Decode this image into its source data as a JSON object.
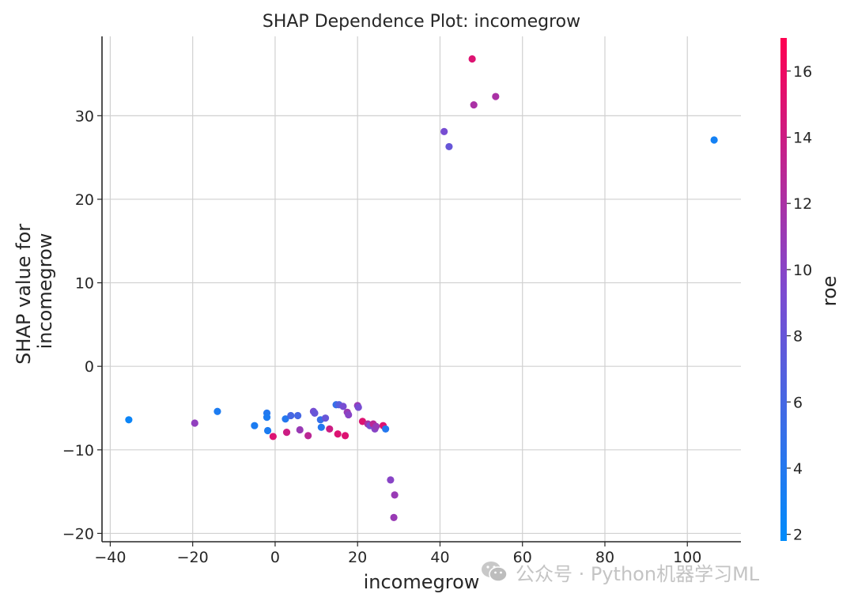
{
  "chart_data": {
    "type": "scatter",
    "title": "SHAP Dependence Plot: incomegrow",
    "xlabel": "incomegrow",
    "ylabel": [
      "SHAP value for",
      "incomegrow"
    ],
    "xlim": [
      -42,
      113
    ],
    "ylim": [
      -21,
      39.5
    ],
    "xticks": [
      -40,
      -20,
      0,
      20,
      40,
      60,
      80,
      100
    ],
    "xtick_labels": [
      "−40",
      "−20",
      "0",
      "20",
      "40",
      "60",
      "80",
      "100"
    ],
    "yticks": [
      -20,
      -10,
      0,
      10,
      20,
      30
    ],
    "ytick_labels": [
      "−20",
      "−10",
      "0",
      "10",
      "20",
      "30"
    ],
    "grid": true,
    "colorbar": {
      "label": "roe",
      "range": [
        1.8,
        17
      ],
      "ticks": [
        2,
        4,
        6,
        8,
        10,
        12,
        14,
        16
      ],
      "tick_labels": [
        "2",
        "4",
        "6",
        "8",
        "10",
        "12",
        "14",
        "16"
      ],
      "colormap": [
        "#008bfb",
        "#ff0051"
      ]
    },
    "points": [
      {
        "x": -35.5,
        "y": -6.4,
        "roe": 2.5
      },
      {
        "x": -19.5,
        "y": -6.8,
        "roe": 10.5
      },
      {
        "x": -14,
        "y": -5.4,
        "roe": 3.5
      },
      {
        "x": -5,
        "y": -7.1,
        "roe": 3.5
      },
      {
        "x": -2,
        "y": -5.6,
        "roe": 4
      },
      {
        "x": -2,
        "y": -6.1,
        "roe": 3.5
      },
      {
        "x": -1.8,
        "y": -7.7,
        "roe": 3.5
      },
      {
        "x": -0.5,
        "y": -8.4,
        "roe": 15
      },
      {
        "x": 2.5,
        "y": -6.3,
        "roe": 4
      },
      {
        "x": 2.8,
        "y": -7.9,
        "roe": 14
      },
      {
        "x": 3.8,
        "y": -5.9,
        "roe": 6
      },
      {
        "x": 5.5,
        "y": -5.9,
        "roe": 6
      },
      {
        "x": 6,
        "y": -7.6,
        "roe": 11
      },
      {
        "x": 8,
        "y": -8.3,
        "roe": 13
      },
      {
        "x": 9.3,
        "y": -5.4,
        "roe": 9
      },
      {
        "x": 9.6,
        "y": -5.6,
        "roe": 8
      },
      {
        "x": 11,
        "y": -6.4,
        "roe": 5
      },
      {
        "x": 11.2,
        "y": -7.3,
        "roe": 4
      },
      {
        "x": 12.2,
        "y": -6.2,
        "roe": 8
      },
      {
        "x": 13.2,
        "y": -7.5,
        "roe": 14
      },
      {
        "x": 14.8,
        "y": -4.6,
        "roe": 5
      },
      {
        "x": 15.5,
        "y": -4.6,
        "roe": 7
      },
      {
        "x": 15.2,
        "y": -8.1,
        "roe": 15
      },
      {
        "x": 16.5,
        "y": -4.8,
        "roe": 9
      },
      {
        "x": 17,
        "y": -8.3,
        "roe": 15
      },
      {
        "x": 17.5,
        "y": -5.5,
        "roe": 11
      },
      {
        "x": 17.8,
        "y": -5.8,
        "roe": 10
      },
      {
        "x": 20,
        "y": -4.7,
        "roe": 11
      },
      {
        "x": 20.2,
        "y": -4.9,
        "roe": 9
      },
      {
        "x": 21.2,
        "y": -6.6,
        "roe": 15
      },
      {
        "x": 22.5,
        "y": -6.9,
        "roe": 12
      },
      {
        "x": 23,
        "y": -7.1,
        "roe": 9
      },
      {
        "x": 23.8,
        "y": -6.9,
        "roe": 13
      },
      {
        "x": 24.2,
        "y": -7.5,
        "roe": 10
      },
      {
        "x": 24.5,
        "y": -7.2,
        "roe": 11
      },
      {
        "x": 26.2,
        "y": -7.1,
        "roe": 15
      },
      {
        "x": 26.8,
        "y": -7.5,
        "roe": 4
      },
      {
        "x": 28,
        "y": -13.6,
        "roe": 10
      },
      {
        "x": 29,
        "y": -15.4,
        "roe": 11
      },
      {
        "x": 28.8,
        "y": -18.1,
        "roe": 11
      },
      {
        "x": 41,
        "y": 28.1,
        "roe": 9
      },
      {
        "x": 42.2,
        "y": 26.3,
        "roe": 8
      },
      {
        "x": 47.8,
        "y": 36.8,
        "roe": 15
      },
      {
        "x": 48.2,
        "y": 31.3,
        "roe": 12
      },
      {
        "x": 53.5,
        "y": 32.3,
        "roe": 12
      },
      {
        "x": 106.5,
        "y": 27.1,
        "roe": 3
      }
    ]
  },
  "watermark": {
    "icon": "wechat-icon",
    "text": "公众号 · Python机器学习ML"
  }
}
